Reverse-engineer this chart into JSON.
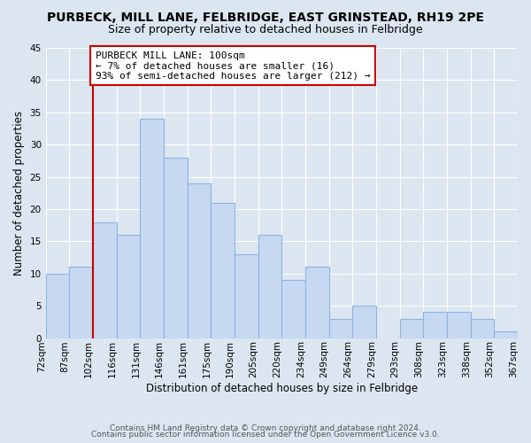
{
  "title": "PURBECK, MILL LANE, FELBRIDGE, EAST GRINSTEAD, RH19 2PE",
  "subtitle": "Size of property relative to detached houses in Felbridge",
  "xlabel": "Distribution of detached houses by size in Felbridge",
  "ylabel": "Number of detached properties",
  "categories": [
    "72sqm",
    "87sqm",
    "102sqm",
    "116sqm",
    "131sqm",
    "146sqm",
    "161sqm",
    "175sqm",
    "190sqm",
    "205sqm",
    "220sqm",
    "234sqm",
    "249sqm",
    "264sqm",
    "279sqm",
    "293sqm",
    "308sqm",
    "323sqm",
    "338sqm",
    "352sqm",
    "367sqm"
  ],
  "values": [
    10,
    11,
    18,
    16,
    34,
    28,
    24,
    21,
    13,
    16,
    9,
    11,
    3,
    5,
    0,
    3,
    4,
    4,
    3,
    1
  ],
  "bar_color": "#c6d9f1",
  "bar_edge_color": "#8db4e2",
  "annotation_text": "PURBECK MILL LANE: 100sqm\n← 7% of detached houses are smaller (16)\n93% of semi-detached houses are larger (212) →",
  "annotation_box_color": "#ffffff",
  "annotation_box_edge_color": "#cc0000",
  "vline_color": "#cc0000",
  "footer_line1": "Contains HM Land Registry data © Crown copyright and database right 2024.",
  "footer_line2": "Contains public sector information licensed under the Open Government Licence v3.0.",
  "ylim": [
    0,
    45
  ],
  "yticks": [
    0,
    5,
    10,
    15,
    20,
    25,
    30,
    35,
    40,
    45
  ],
  "background_color": "#dce6f1",
  "title_fontsize": 10,
  "subtitle_fontsize": 9,
  "xlabel_fontsize": 8.5,
  "ylabel_fontsize": 8.5,
  "tick_fontsize": 7.5,
  "annotation_fontsize": 8,
  "footer_fontsize": 6.5
}
